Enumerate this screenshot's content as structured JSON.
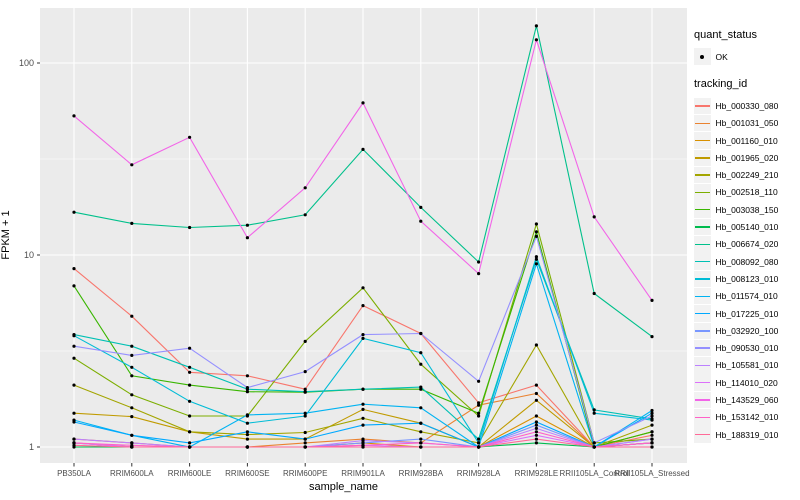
{
  "colors": {
    "panel_bg": "#EBEBEB",
    "grid_major": "#FFFFFF",
    "grid_minor": "#F7F7F7",
    "tick": "#333333",
    "axis_text": "#4D4D4D",
    "point": "#000000",
    "legend_key_bg": "#F2F2F2"
  },
  "legend": {
    "quant_title": "quant_status",
    "quant_entry": "OK",
    "tracking_title": "tracking_id"
  },
  "chart_data": {
    "type": "line",
    "title": "",
    "xlabel": "sample_name",
    "ylabel": "FPKM + 1",
    "y_scale": "log10",
    "y_ticks": [
      1,
      10,
      100
    ],
    "y_minor_ticks": [
      3.1623,
      31.623
    ],
    "ylim": [
      0.83,
      195
    ],
    "grid": "on",
    "legend_position": "right",
    "point_marker": "black point (quant_status = OK)",
    "categories": [
      "PB350LA",
      "RRIM600LA",
      "RRIM600LE",
      "RRIM600SE",
      "RRIM600PE",
      "RRIM901LA",
      "RRIM928BA",
      "RRIM928LA",
      "RRIM928LE",
      "RRII105LA_Control",
      "RRII105LA_Stressed"
    ],
    "series": [
      {
        "name": "Hb_000330_080",
        "color": "#F8766D",
        "values": [
          8.5,
          4.8,
          2.45,
          2.35,
          2.0,
          5.45,
          3.9,
          1.7,
          2.1,
          1.0,
          1.15
        ]
      },
      {
        "name": "Hb_001031_050",
        "color": "#EA8331",
        "values": [
          1.1,
          1.05,
          1.0,
          1.0,
          1.05,
          1.1,
          1.05,
          1.65,
          1.9,
          1.0,
          1.05
        ]
      },
      {
        "name": "Hb_001160_010",
        "color": "#D89000",
        "values": [
          1.05,
          1.0,
          1.0,
          1.0,
          1.0,
          1.05,
          1.0,
          1.0,
          1.45,
          1.0,
          1.0
        ]
      },
      {
        "name": "Hb_001965_020",
        "color": "#C09B00",
        "values": [
          1.5,
          1.44,
          1.2,
          1.1,
          1.1,
          1.57,
          1.33,
          1.0,
          1.75,
          1.0,
          1.2
        ]
      },
      {
        "name": "Hb_002249_210",
        "color": "#A3A500",
        "values": [
          2.1,
          1.6,
          1.2,
          1.16,
          1.19,
          1.41,
          1.2,
          1.05,
          3.4,
          1.0,
          1.3
        ]
      },
      {
        "name": "Hb_002518_110",
        "color": "#7CAE00",
        "values": [
          2.9,
          1.87,
          1.45,
          1.45,
          3.55,
          6.75,
          2.7,
          1.45,
          14.5,
          1.05,
          1.1
        ]
      },
      {
        "name": "Hb_003038_150",
        "color": "#39B600",
        "values": [
          6.9,
          2.35,
          2.1,
          1.94,
          1.93,
          2.0,
          2.0,
          1.5,
          13.2,
          1.0,
          1.2
        ]
      },
      {
        "name": "Hb_005140_010",
        "color": "#00BB4E",
        "values": [
          1.0,
          1.0,
          1.0,
          1.0,
          1.0,
          1.0,
          1.0,
          1.0,
          1.05,
          1.0,
          1.05
        ]
      },
      {
        "name": "Hb_006674_020",
        "color": "#00C08B",
        "values": [
          16.7,
          14.6,
          13.9,
          14.3,
          16.2,
          35.5,
          17.7,
          9.2,
          156,
          6.3,
          3.76
        ]
      },
      {
        "name": "Hb_008092_080",
        "color": "#00C0B4",
        "values": [
          3.85,
          3.35,
          2.6,
          2.0,
          1.94,
          2.0,
          2.05,
          1.1,
          9.5,
          1.56,
          1.4
        ]
      },
      {
        "name": "Hb_008123_010",
        "color": "#00BCD6",
        "values": [
          3.8,
          2.6,
          1.73,
          1.33,
          1.45,
          3.68,
          3.1,
          1.05,
          9.8,
          1.5,
          1.38
        ]
      },
      {
        "name": "Hb_011574_010",
        "color": "#00B3F2",
        "values": [
          1.38,
          1.15,
          1.0,
          1.47,
          1.5,
          1.67,
          1.6,
          1.0,
          9.0,
          1.0,
          1.55
        ]
      },
      {
        "name": "Hb_017225_010",
        "color": "#00A9FF",
        "values": [
          1.35,
          1.15,
          1.05,
          1.2,
          1.1,
          1.3,
          1.33,
          1.0,
          1.35,
          1.0,
          1.5
        ]
      },
      {
        "name": "Hb_032920_100",
        "color": "#7997FF",
        "values": [
          1.05,
          1.0,
          1.0,
          1.0,
          1.0,
          1.05,
          1.1,
          1.0,
          1.3,
          1.0,
          1.1
        ]
      },
      {
        "name": "Hb_090530_010",
        "color": "#9590FF",
        "values": [
          3.35,
          3.0,
          3.27,
          2.04,
          2.47,
          3.85,
          3.9,
          2.2,
          12.5,
          1.05,
          1.45
        ]
      },
      {
        "name": "Hb_105581_010",
        "color": "#BC81FF",
        "values": [
          1.1,
          1.05,
          1.0,
          1.0,
          1.0,
          1.08,
          1.05,
          1.0,
          1.25,
          1.0,
          1.1
        ]
      },
      {
        "name": "Hb_114010_020",
        "color": "#DC71FA",
        "values": [
          1.05,
          1.0,
          1.0,
          1.0,
          1.0,
          1.02,
          1.0,
          1.0,
          1.15,
          1.0,
          1.05
        ]
      },
      {
        "name": "Hb_143529_060",
        "color": "#F265E8",
        "values": [
          53,
          29.5,
          41,
          12.3,
          22.4,
          62,
          15,
          8,
          132,
          15.8,
          5.8
        ]
      },
      {
        "name": "Hb_153142_010",
        "color": "#FF61C7",
        "values": [
          1.05,
          1.02,
          1.0,
          1.0,
          1.0,
          1.02,
          1.05,
          1.0,
          1.2,
          1.0,
          1.05
        ]
      },
      {
        "name": "Hb_188319_010",
        "color": "#FF6A98",
        "values": [
          1.02,
          1.0,
          1.0,
          1.0,
          1.0,
          1.0,
          1.0,
          1.0,
          1.1,
          1.0,
          1.0
        ]
      }
    ]
  }
}
